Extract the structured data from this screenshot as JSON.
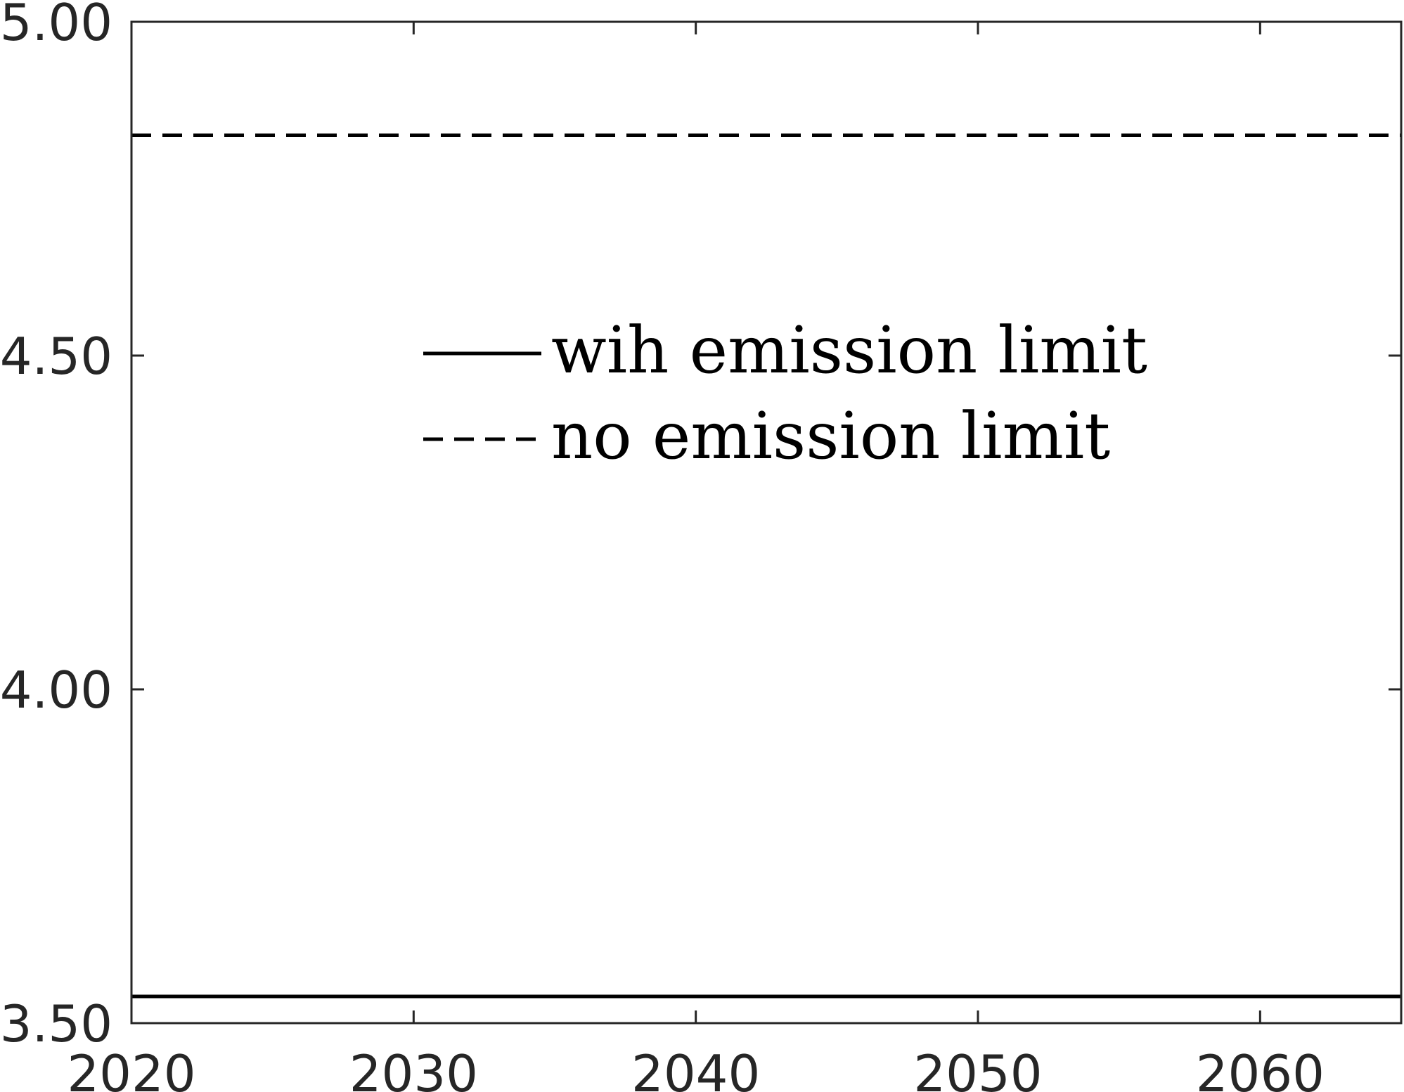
{
  "chart_data": {
    "type": "line",
    "title": "",
    "xlabel": "",
    "ylabel": "",
    "xlim": [
      2020,
      2065
    ],
    "ylim": [
      3.5,
      5.0
    ],
    "x_ticks": [
      "2020",
      "2030",
      "2040",
      "2050",
      "2060"
    ],
    "y_ticks": [
      "3.50",
      "4.00",
      "4.50",
      "5.00"
    ],
    "grid": false,
    "legend_position": "center",
    "series": [
      {
        "name": "wih emission limit",
        "style": "solid",
        "color": "#000000",
        "x": [
          2020,
          2065
        ],
        "y": [
          3.54,
          3.54
        ]
      },
      {
        "name": "no emission limit",
        "style": "dashed",
        "color": "#000000",
        "x": [
          2020,
          2065
        ],
        "y": [
          4.83,
          4.83
        ]
      }
    ]
  }
}
